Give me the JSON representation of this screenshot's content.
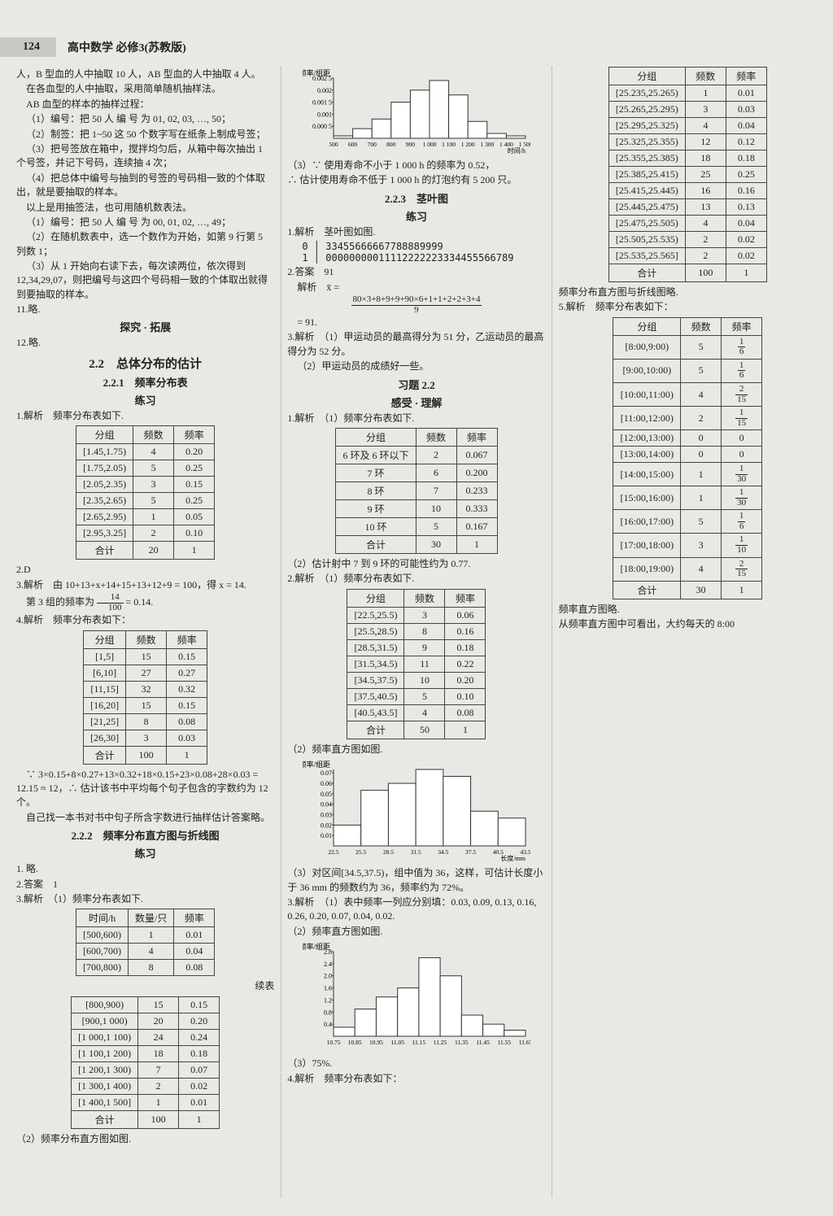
{
  "page_number": "124",
  "header_title": "高中数学 必修3(苏教版)",
  "col1": {
    "p1": "人，B 型血的人中抽取 10 人，AB 型血的人中抽取 4 人。",
    "p2": "在各血型的人中抽取，采用简单随机抽样法。",
    "p3": "AB 血型的样本的抽样过程：",
    "p4": "（1）编号：把 50 人 编 号 为 01, 02, 03, …, 50；",
    "p5": "（2）制签：把 1~50 这 50 个数字写在纸条上制成号签；",
    "p6": "（3）把号签放在箱中，搅拌均匀后，从箱中每次抽出 1 个号签，并记下号码，连续抽 4 次；",
    "p7": "（4）把总体中编号与抽到的号签的号码相一致的个体取出，就是要抽取的样本。",
    "p8": "以上是用抽签法，也可用随机数表法。",
    "p9": "（1）编号：把 50 人 编 号 为 00, 01, 02, …, 49；",
    "p10": "（2）在随机数表中，选一个数作为开始，如第 9 行第 5 列数 1；",
    "p11": "（3）从 1 开始向右读下去，每次读两位，依次得到 12,34,29,07，则把编号与这四个号码相一致的个体取出就得到要抽取的样本。",
    "p12": "11.略.",
    "h_tj": "探究 · 拓展",
    "p13": "12.略.",
    "h22": "2.2　总体分布的估计",
    "h221": "2.2.1　频率分布表",
    "h_lx": "练习",
    "q1": "1.解析　频率分布表如下.",
    "t1": {
      "cols": [
        "分组",
        "频数",
        "频率"
      ],
      "rows": [
        [
          "[1.45,1.75)",
          "4",
          "0.20"
        ],
        [
          "[1.75,2.05)",
          "5",
          "0.25"
        ],
        [
          "[2.05,2.35)",
          "3",
          "0.15"
        ],
        [
          "[2.35,2.65)",
          "5",
          "0.25"
        ],
        [
          "[2.65,2.95)",
          "1",
          "0.05"
        ],
        [
          "[2.95,3.25]",
          "2",
          "0.10"
        ],
        [
          "合计",
          "20",
          "1"
        ]
      ]
    },
    "q2": "2.D",
    "q3a": "3.解析　由 10+13+x+14+15+13+12+9 = 100，得 x = 14.",
    "q3b_pre": "第 3 组的频率为",
    "q3b_frac_n": "14",
    "q3b_frac_d": "100",
    "q3b_post": " = 0.14.",
    "q4": "4.解析　频率分布表如下：",
    "t2": {
      "cols": [
        "分组",
        "频数",
        "频率"
      ],
      "rows": [
        [
          "[1,5]",
          "15",
          "0.15"
        ],
        [
          "[6,10]",
          "27",
          "0.27"
        ],
        [
          "[11,15]",
          "32",
          "0.32"
        ],
        [
          "[16,20]",
          "15",
          "0.15"
        ],
        [
          "[21,25]",
          "8",
          "0.08"
        ],
        [
          "[26,30]",
          "3",
          "0.03"
        ],
        [
          "合计",
          "100",
          "1"
        ]
      ]
    },
    "q4b": "∵ 3×0.15+8×0.27+13×0.32+18×0.15+23×0.08+28×0.03 = 12.15 ≈ 12，∴ 估计该书中平均每个句子包含的字数约为 12 个。",
    "q4c": "自己找一本书对书中句子所含字数进行抽样估计答案略。",
    "h222": "2.2.2　频率分布直方图与折线图",
    "h_lx2": "练习",
    "q222_1": "1. 略.",
    "q222_2": "2.答案　1",
    "q222_3": "3.解析　（1）频率分布表如下.",
    "t3": {
      "cols": [
        "时间/h",
        "数量/只",
        "频率"
      ],
      "rows": [
        [
          "[500,600)",
          "1",
          "0.01"
        ],
        [
          "[600,700)",
          "4",
          "0.04"
        ],
        [
          "[700,800)",
          "8",
          "0.08"
        ]
      ]
    }
  },
  "col2": {
    "t3cont_title": "续表",
    "t3cont": {
      "rows": [
        [
          "[800,900)",
          "15",
          "0.15"
        ],
        [
          "[900,1 000)",
          "20",
          "0.20"
        ],
        [
          "[1 000,1 100)",
          "24",
          "0.24"
        ],
        [
          "[1 100,1 200)",
          "18",
          "0.18"
        ],
        [
          "[1 200,1 300)",
          "7",
          "0.07"
        ],
        [
          "[1 300,1 400)",
          "2",
          "0.02"
        ],
        [
          "[1 400,1 500]",
          "1",
          "0.01"
        ],
        [
          "合计",
          "100",
          "1"
        ]
      ]
    },
    "p_chart1": "（2）频率分布直方图如图.",
    "chart1": {
      "ylabel": "频率/组距",
      "x_ticks": [
        "500",
        "600",
        "700",
        "800",
        "900",
        "1 000",
        "1 100",
        "1 200",
        "1 300",
        "1 400",
        "1 500"
      ],
      "xlabel": "时间/h",
      "bars": [
        0.0001,
        0.0004,
        0.0008,
        0.0015,
        0.002,
        0.0024,
        0.0018,
        0.0007,
        0.0002,
        0.0001
      ],
      "y_ticks": [
        "0.000 5",
        "0.001",
        "0.001 5",
        "0.002",
        "0.002 5"
      ],
      "ymax": 0.0025,
      "bar_color": "#ffffff",
      "border_color": "#333333",
      "bg": "#efefeb"
    },
    "p_c1b": "（3）∵ 使用寿命不小于 1 000 h 的频率为 0.52，",
    "p_c1c": "∴ 估计使用寿命不低于 1 000 h 的灯泡约有 5 200 只。",
    "h223": "2.2.3　茎叶图",
    "h_lx3": "练习",
    "q223_1": "1.解析　茎叶图如图.",
    "stem0": "0",
    "leaf0": "33455666667788889999",
    "stem1": "1",
    "leaf1": "00000000011112222223334455566789",
    "q223_2": "2.答案　91",
    "q223_2b_pre": "解析　x̄ =",
    "q223_2b_num": "80×3+8+9+9+90×6+1+1+2+2+3+4",
    "q223_2b_den": "9",
    "q223_2c": " = 91.",
    "q223_3a": "3.解析　（1）甲运动员的最高得分为 51 分，乙运动员的最高得分为 52 分。",
    "q223_3b": "（2）甲运动员的成绩好一些。",
    "h_xt22": "习题 2.2",
    "h_gs": "感受 · 理解",
    "xt1": "1.解析　（1）频率分布表如下.",
    "t_ring": {
      "cols": [
        "分组",
        "频数",
        "频率"
      ],
      "rows": [
        [
          "6 环及 6 环以下",
          "2",
          "0.067"
        ],
        [
          "7 环",
          "6",
          "0.200"
        ],
        [
          "8 环",
          "7",
          "0.233"
        ],
        [
          "9 环",
          "10",
          "0.333"
        ],
        [
          "10 环",
          "5",
          "0.167"
        ],
        [
          "合计",
          "30",
          "1"
        ]
      ]
    },
    "xt1b": "（2）估计射中 7 到 9 环的可能性约为 0.77.",
    "xt2": "2.解析　（1）频率分布表如下.",
    "t_225": {
      "cols": [
        "分组",
        "频数",
        "频率"
      ],
      "rows": [
        [
          "[22.5,25.5)",
          "3",
          "0.06"
        ],
        [
          "[25.5,28.5)",
          "8",
          "0.16"
        ],
        [
          "[28.5,31.5)",
          "9",
          "0.18"
        ],
        [
          "[31.5,34.5)",
          "11",
          "0.22"
        ],
        [
          "[34.5,37.5)",
          "10",
          "0.20"
        ],
        [
          "[37.5,40.5)",
          "5",
          "0.10"
        ],
        [
          "[40.5,43.5]",
          "4",
          "0.08"
        ],
        [
          "合计",
          "50",
          "1"
        ]
      ]
    },
    "xt2b": "（2）频率直方图如图."
  },
  "col3": {
    "chart2": {
      "ylabel": "频率/组距",
      "x_ticks": [
        "22.5",
        "25.5",
        "28.5",
        "31.5",
        "34.5",
        "37.5",
        "40.5",
        "43.5"
      ],
      "xlabel": "长度/mm",
      "bars": [
        0.02,
        0.0533,
        0.06,
        0.0733,
        0.0667,
        0.0333,
        0.0267
      ],
      "y_ticks": [
        "0.01",
        "0.02",
        "0.03",
        "0.04",
        "0.05",
        "0.06",
        "0.07"
      ],
      "ymax": 0.0733,
      "bar_color": "#ffffff",
      "border_color": "#333333",
      "bg": "#efefeb"
    },
    "p1": "（3）对区间[34.5,37.5)，组中值为 36，这样，可估计长度小于 36 mm 的频数约为 36，频率约为 72%。",
    "q3": "3.解析　（1）表中频率一列应分别填：0.03, 0.09, 0.13, 0.16, 0.26, 0.20, 0.07, 0.04, 0.02.",
    "q3b": "（2）频率直方图如图.",
    "chart3": {
      "ylabel": "频率/组距",
      "x_ticks": [
        "10.75",
        "10.85",
        "10.95",
        "11.05",
        "11.15",
        "11.25",
        "11.35",
        "11.45",
        "11.55",
        "11.65"
      ],
      "bars": [
        0.3,
        0.9,
        1.3,
        1.6,
        2.6,
        2.0,
        0.7,
        0.4,
        0.2
      ],
      "y_ticks": [
        "0.4",
        "0.8",
        "1.2",
        "1.6",
        "2.0",
        "2.4",
        "2.8"
      ],
      "ymax": 2.8,
      "bar_color": "#ffffff",
      "border_color": "#333333",
      "bg": "#efefeb"
    },
    "q3c": "（3）75%.",
    "q4": "4.解析　频率分布表如下：",
    "t4": {
      "cols": [
        "分组",
        "频数",
        "频率"
      ],
      "rows": [
        [
          "[25.235,25.265)",
          "1",
          "0.01"
        ],
        [
          "[25.265,25.295)",
          "3",
          "0.03"
        ],
        [
          "[25.295,25.325)",
          "4",
          "0.04"
        ],
        [
          "[25.325,25.355)",
          "12",
          "0.12"
        ],
        [
          "[25.355,25.385)",
          "18",
          "0.18"
        ],
        [
          "[25.385,25.415)",
          "25",
          "0.25"
        ],
        [
          "[25.415,25.445)",
          "16",
          "0.16"
        ],
        [
          "[25.445,25.475)",
          "13",
          "0.13"
        ],
        [
          "[25.475,25.505)",
          "4",
          "0.04"
        ],
        [
          "[25.505,25.535)",
          "2",
          "0.02"
        ],
        [
          "[25.535,25.565]",
          "2",
          "0.02"
        ],
        [
          "合计",
          "100",
          "1"
        ]
      ]
    },
    "q4b": "频率分布直方图与折线图略.",
    "q5": "5.解析　频率分布表如下：",
    "t5": {
      "cols": [
        "分组",
        "频数",
        "频率"
      ],
      "rows": [
        [
          "[8:00,9:00)",
          "5",
          "1/6"
        ],
        [
          "[9:00,10:00)",
          "5",
          "1/6"
        ],
        [
          "[10:00,11:00)",
          "4",
          "2/15"
        ],
        [
          "[11:00,12:00)",
          "2",
          "1/15"
        ],
        [
          "[12:00,13:00)",
          "0",
          "0"
        ],
        [
          "[13:00,14:00)",
          "0",
          "0"
        ],
        [
          "[14:00,15:00)",
          "1",
          "1/30"
        ],
        [
          "[15:00,16:00)",
          "1",
          "1/30"
        ],
        [
          "[16:00,17:00)",
          "5",
          "1/6"
        ],
        [
          "[17:00,18:00)",
          "3",
          "1/10"
        ],
        [
          "[18:00,19:00)",
          "4",
          "2/15"
        ],
        [
          "合计",
          "30",
          "1"
        ]
      ]
    },
    "q5b": "频率直方图略.",
    "q5c": "从频率直方图中可看出，大约每天的 8:00"
  }
}
